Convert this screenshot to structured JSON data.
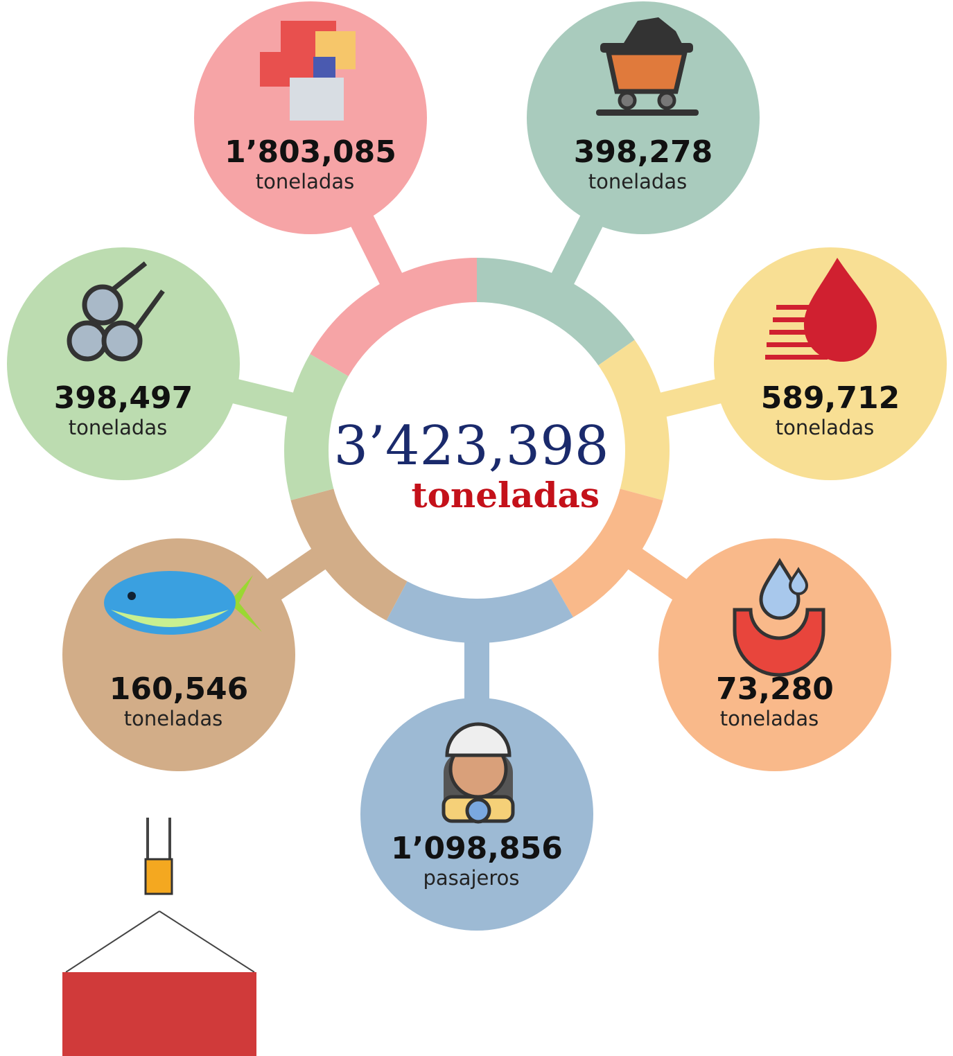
{
  "center": {
    "value": "3’423,398",
    "unit": "toneladas"
  },
  "nodes": [
    {
      "value": "1’803,085",
      "unit": "toneladas"
    },
    {
      "value": "398,278",
      "unit": "toneladas"
    },
    {
      "value": "589,712",
      "unit": "toneladas"
    },
    {
      "value": "73,280",
      "unit": "toneladas"
    },
    {
      "value": "1’098,856",
      "unit": "pasajeros"
    },
    {
      "value": "160,546",
      "unit": "toneladas"
    },
    {
      "value": "398,497",
      "unit": "toneladas"
    }
  ]
}
